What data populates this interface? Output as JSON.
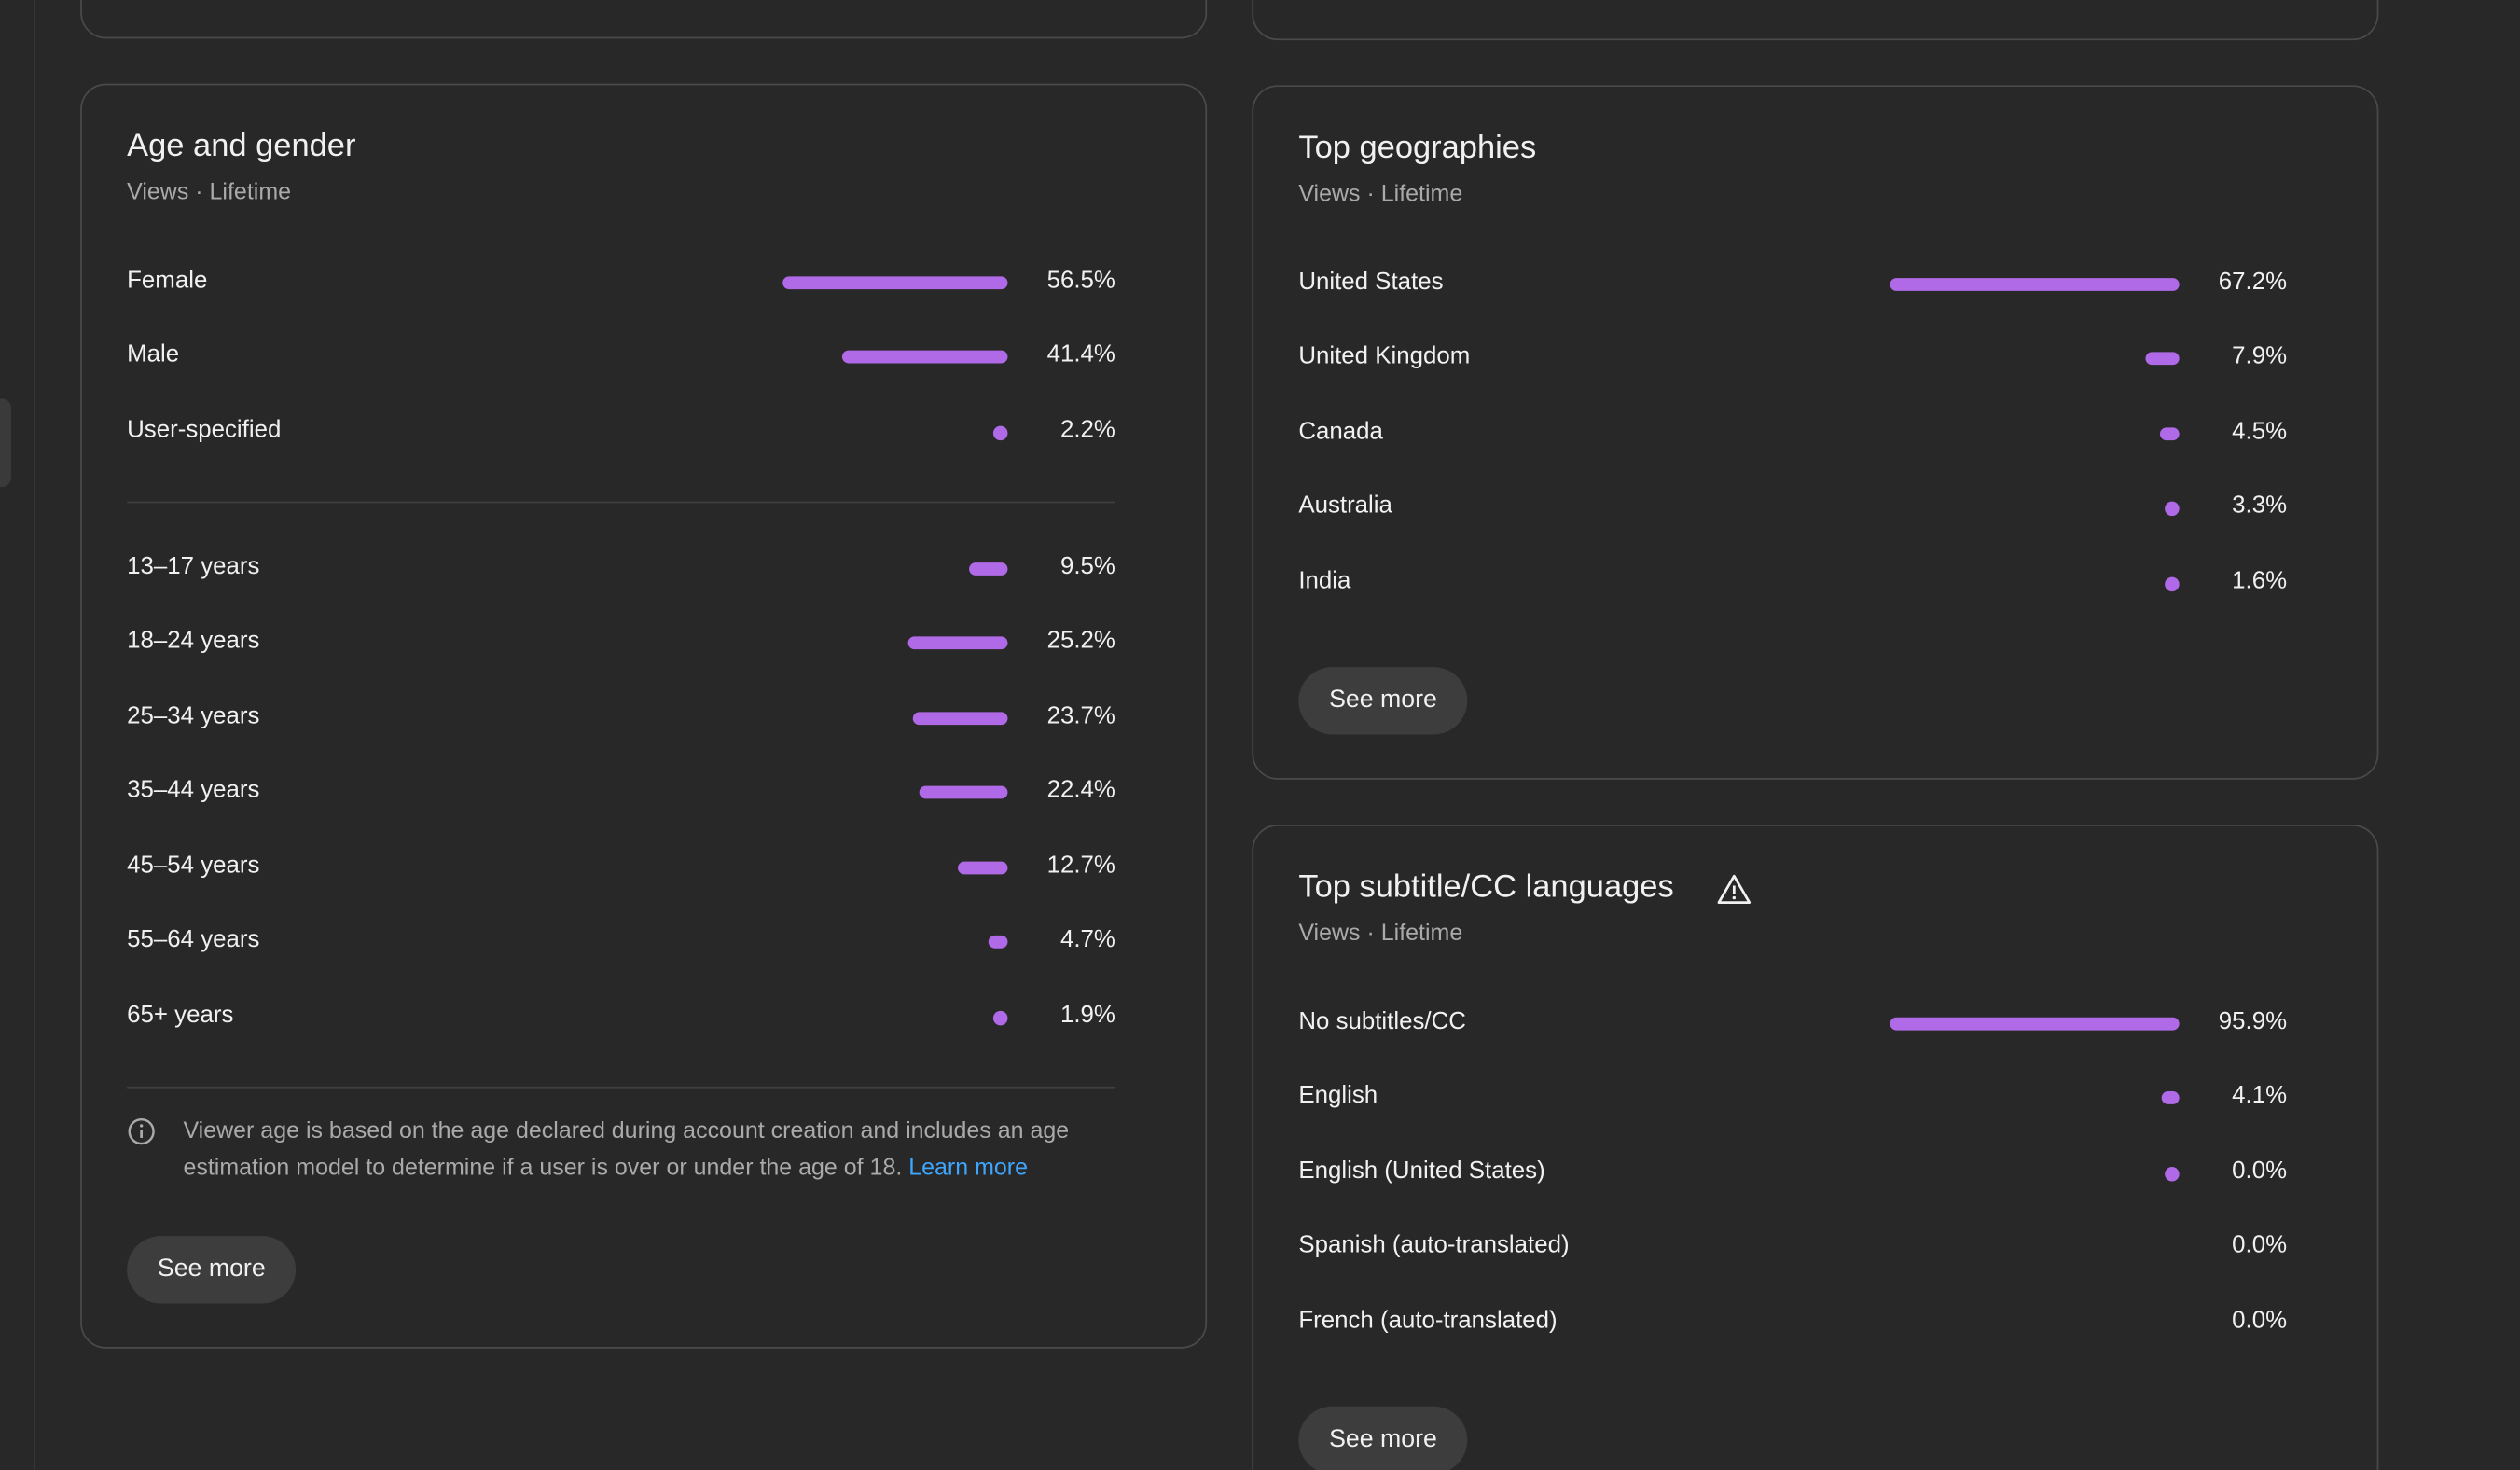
{
  "theme": {
    "accent": "#b06ae8",
    "link": "#3ea6ff",
    "card_bg": "#282828",
    "border": "#4a4a4a",
    "subtext": "#aaaaaa"
  },
  "age_gender": {
    "title": "Age and gender",
    "subtitle": "Views · Lifetime",
    "gender": [
      {
        "label": "Female",
        "value": "56.5%",
        "pct": 56.5
      },
      {
        "label": "Male",
        "value": "41.4%",
        "pct": 41.4
      },
      {
        "label": "User-specified",
        "value": "2.2%",
        "pct": 2.2
      }
    ],
    "ages": [
      {
        "label": "13–17 years",
        "value": "9.5%",
        "pct": 9.5
      },
      {
        "label": "18–24 years",
        "value": "25.2%",
        "pct": 25.2
      },
      {
        "label": "25–34 years",
        "value": "23.7%",
        "pct": 23.7
      },
      {
        "label": "35–44 years",
        "value": "22.4%",
        "pct": 22.4
      },
      {
        "label": "45–54 years",
        "value": "12.7%",
        "pct": 12.7
      },
      {
        "label": "55–64 years",
        "value": "4.7%",
        "pct": 4.7
      },
      {
        "label": "65+ years",
        "value": "1.9%",
        "pct": 1.9
      }
    ],
    "note": "Viewer age is based on the age declared during account creation and includes an age estimation model to determine if a user is over or under the age of 18.",
    "learn_more": "Learn more",
    "see_more": "See more"
  },
  "geographies": {
    "title": "Top geographies",
    "subtitle": "Views · Lifetime",
    "rows": [
      {
        "label": "United States",
        "value": "67.2%",
        "pct": 67.2
      },
      {
        "label": "United Kingdom",
        "value": "7.9%",
        "pct": 7.9
      },
      {
        "label": "Canada",
        "value": "4.5%",
        "pct": 4.5
      },
      {
        "label": "Australia",
        "value": "3.3%",
        "pct": 3.3
      },
      {
        "label": "India",
        "value": "1.6%",
        "pct": 1.6
      }
    ],
    "see_more": "See more"
  },
  "languages": {
    "title": "Top subtitle/CC languages",
    "subtitle": "Views · Lifetime",
    "rows": [
      {
        "label": "No subtitles/CC",
        "value": "95.9%",
        "pct": 95.9
      },
      {
        "label": "English",
        "value": "4.1%",
        "pct": 4.1
      },
      {
        "label": "English (United States)",
        "value": "0.0%",
        "pct": 0.04
      },
      {
        "label": "Spanish (auto-translated)",
        "value": "0.0%",
        "pct": 0
      },
      {
        "label": "French (auto-translated)",
        "value": "0.0%",
        "pct": 0
      }
    ],
    "see_more": "See more"
  }
}
